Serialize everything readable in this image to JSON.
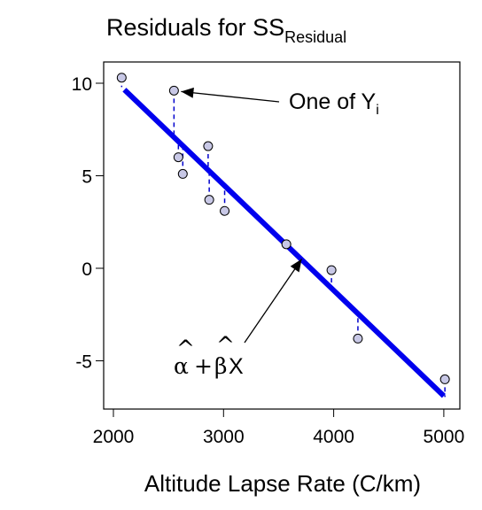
{
  "chart_data": {
    "type": "scatter",
    "title": "Residuals for SS",
    "title_subscript": "Residual",
    "xlabel": "Altitude Lapse Rate (C/km)",
    "ylabel": "",
    "xlim": [
      2000,
      5050
    ],
    "ylim": [
      -7.5,
      11
    ],
    "x_ticks": [
      2000,
      3000,
      4000,
      5000
    ],
    "y_ticks": [
      -5,
      0,
      5,
      10
    ],
    "x_tick_labels": [
      "2000",
      "3000",
      "4000",
      "5000"
    ],
    "y_tick_labels": [
      "-5",
      "0",
      "5",
      "10"
    ],
    "grid": false,
    "points": [
      {
        "x": 2075,
        "y": 10.3
      },
      {
        "x": 2550,
        "y": 9.6
      },
      {
        "x": 2590,
        "y": 6.0
      },
      {
        "x": 2630,
        "y": 5.1
      },
      {
        "x": 2860,
        "y": 6.6
      },
      {
        "x": 2870,
        "y": 3.7
      },
      {
        "x": 3010,
        "y": 3.1
      },
      {
        "x": 3570,
        "y": 1.3
      },
      {
        "x": 3980,
        "y": -0.1
      },
      {
        "x": 4220,
        "y": -3.8
      },
      {
        "x": 5010,
        "y": -6.0
      }
    ],
    "fit_line": {
      "x": [
        2100,
        5000
      ],
      "y": [
        9.65,
        -6.9
      ],
      "color": "#0000ee"
    },
    "residual_color": "#0000cc",
    "point_fill": "#c8c8e6",
    "annotations": [
      {
        "id": "yi",
        "text": "One of Y",
        "subscript": "i",
        "target": {
          "x": 2550,
          "y": 9.6
        }
      },
      {
        "id": "fit",
        "alpha": "α",
        "plus": "+",
        "beta": "β",
        "hat": "^",
        "var": "X",
        "target": {
          "x": 3710,
          "y": 0.5
        }
      }
    ]
  }
}
